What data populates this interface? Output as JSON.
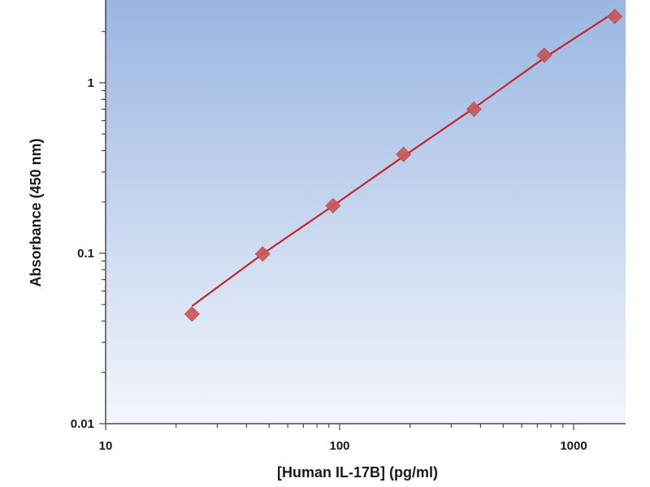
{
  "chart_data": {
    "type": "scatter",
    "xlabel": "[Human IL-17B] (pg/ml)",
    "ylabel": "Absorbance (450 nm)",
    "x_scale": "log",
    "y_scale": "log",
    "xlim": [
      10,
      1500
    ],
    "ylim": [
      0.01,
      2.8
    ],
    "x_ticks": [
      {
        "value": 10,
        "label": "10"
      },
      {
        "value": 100,
        "label": "100"
      },
      {
        "value": 1000,
        "label": "1000"
      }
    ],
    "y_ticks": [
      {
        "value": 0.01,
        "label": "0.01"
      },
      {
        "value": 0.1,
        "label": "0.1"
      },
      {
        "value": 1,
        "label": "1"
      }
    ],
    "grid": false,
    "legend": "none",
    "series": [
      {
        "marker": "diamond",
        "x": [
          23.4,
          46.9,
          93.75,
          187.5,
          375,
          750,
          1500
        ],
        "y": [
          0.044,
          0.099,
          0.19,
          0.38,
          0.7,
          1.45,
          2.45
        ]
      }
    ],
    "fit_line": {
      "x": [
        23.4,
        46.9,
        93.75,
        187.5,
        375,
        750,
        1500
      ],
      "y": [
        0.049,
        0.099,
        0.19,
        0.37,
        0.71,
        1.4,
        2.6
      ]
    },
    "colors": {
      "background_top": "#9ab6e2",
      "background_bottom": "#f3f6fc",
      "marker": "#cd5656",
      "line": "#c0282d"
    }
  }
}
